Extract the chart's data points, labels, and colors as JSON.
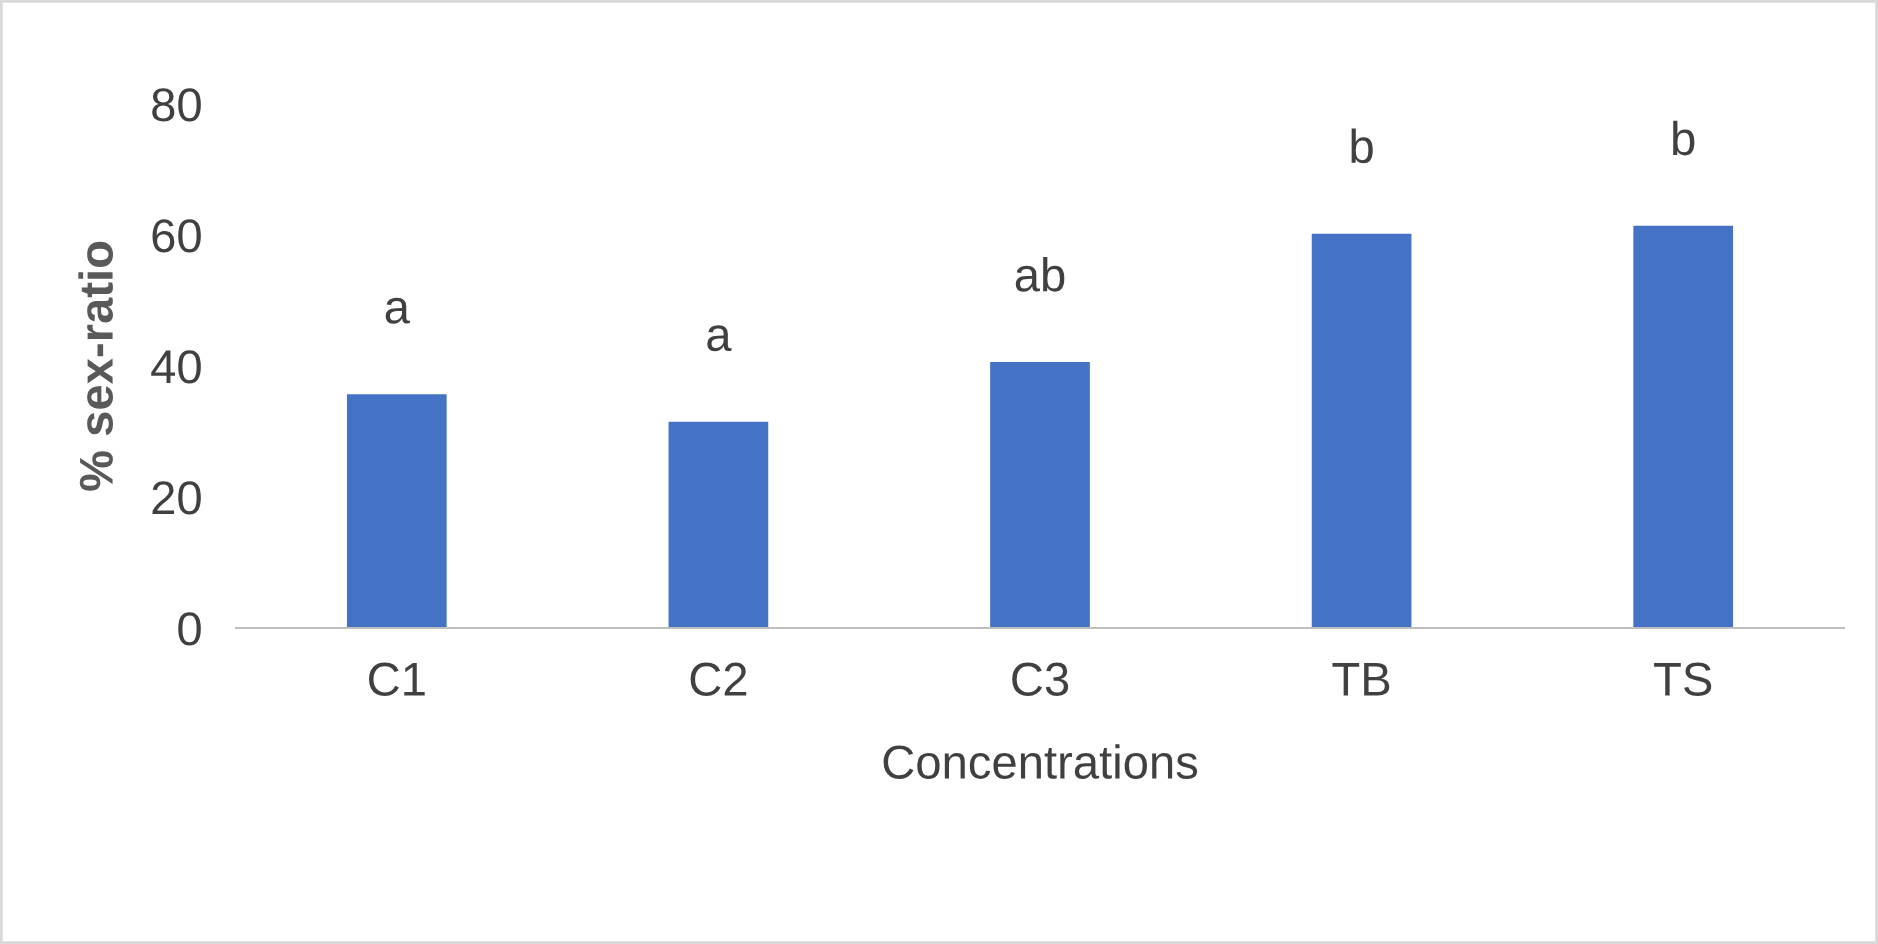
{
  "chart_data": {
    "type": "bar",
    "xlabel": "Concentrations",
    "ylabel": "% sex-ratio",
    "categories": [
      "C1",
      "C2",
      "C3",
      "TB",
      "TS"
    ],
    "values": [
      35.7,
      31.5,
      40.6,
      60.2,
      61.4
    ],
    "color": "#4472c4",
    "ylim": [
      0,
      80
    ],
    "yticks": [
      0,
      20,
      40,
      60,
      80
    ],
    "grid": false,
    "legend": false,
    "annotations": [
      "a",
      "a",
      "ab",
      "b",
      "b"
    ]
  }
}
